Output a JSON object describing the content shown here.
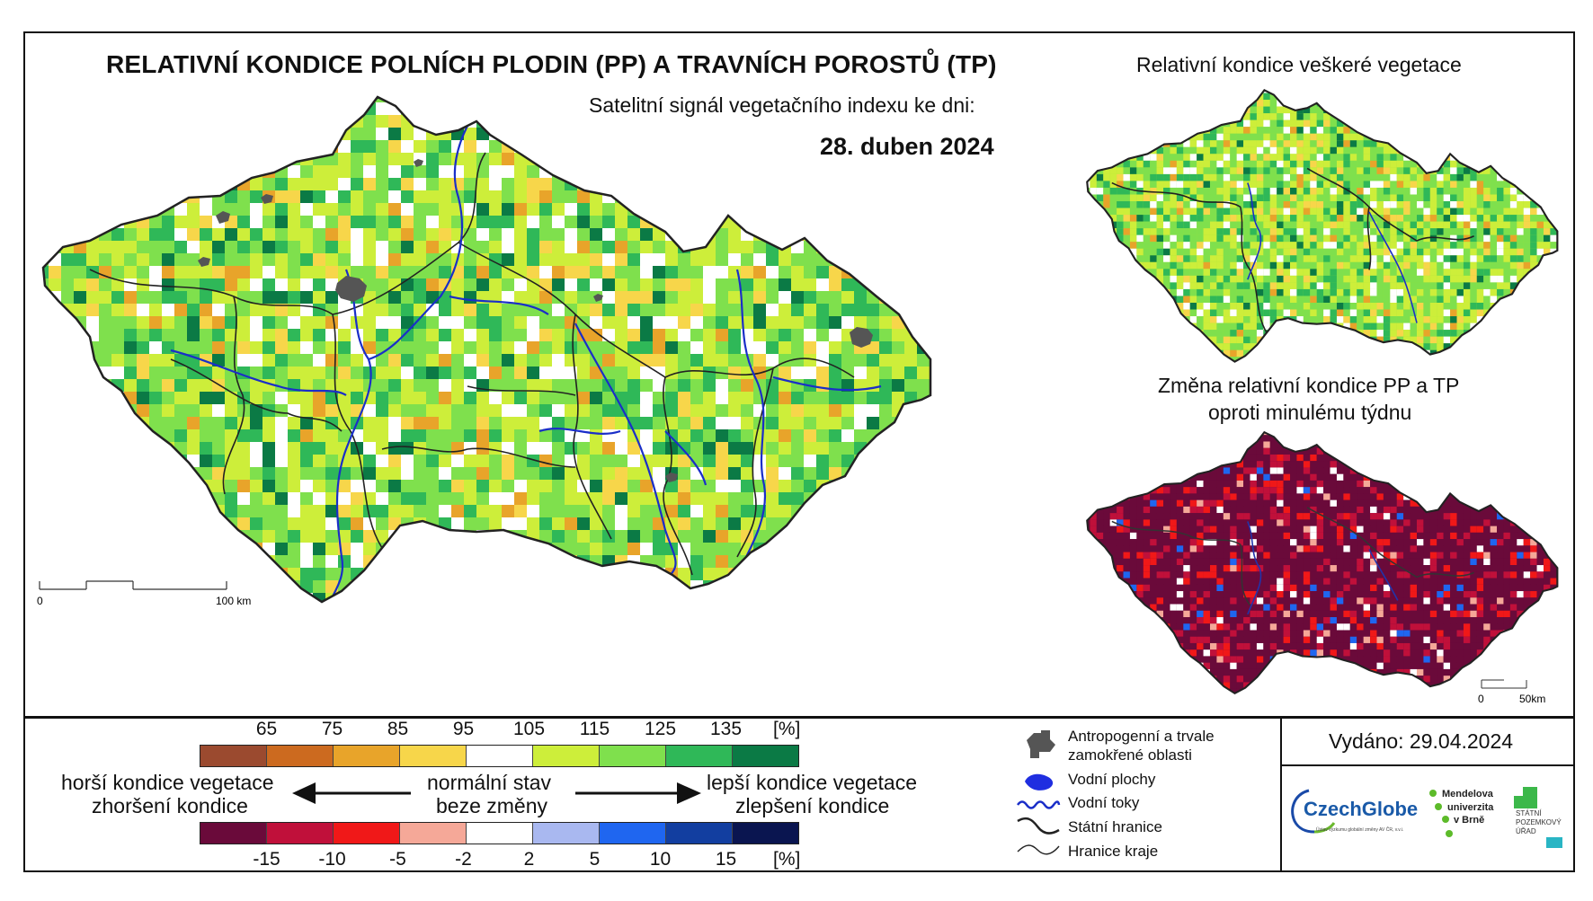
{
  "header": {
    "title": "RELATIVNÍ KONDICE POLNÍCH PLODIN (PP) A TRAVNÍCH POROSTŮ (TP)",
    "subtitle": "Satelitní signál vegetačního indexu ke dni:",
    "date": "28. duben 2024"
  },
  "inset_maps": {
    "vegetation_title": "Relativní kondice veškeré vegetace",
    "change_title_line1": "Změna relativní kondice PP a TP",
    "change_title_line2": "oproti minulému týdnu"
  },
  "scale_bars": {
    "main": {
      "start": "0",
      "end": "100 km"
    },
    "inset": {
      "start": "0",
      "end": "50km"
    }
  },
  "legend": {
    "condition_ticks": [
      "65",
      "75",
      "85",
      "95",
      "105",
      "115",
      "125",
      "135"
    ],
    "condition_unit": "[%]",
    "condition_colors": [
      "#9b4a2f",
      "#cc6a1f",
      "#e8a42a",
      "#f7d64a",
      "#ffffff",
      "#cdee3a",
      "#7fe04d",
      "#2fb858",
      "#0b7a45"
    ],
    "change_ticks": [
      "-15",
      "-10",
      "-5",
      "-2",
      "2",
      "5",
      "10",
      "15"
    ],
    "change_unit": "[%]",
    "change_colors": [
      "#6a0a3a",
      "#c0103a",
      "#f01818",
      "#f5a898",
      "#ffffff",
      "#a9b8f0",
      "#1f66f0",
      "#123ea0",
      "#0a1550"
    ],
    "worse_line1": "horší kondice vegetace",
    "worse_line2": "zhoršení kondice",
    "normal_line1": "normální stav",
    "normal_line2": "beze změny",
    "better_line1": "lepší kondice vegetace",
    "better_line2": "zlepšení kondice"
  },
  "map_legend": {
    "items": [
      {
        "label_line1": "Antropogenní a trvale",
        "label_line2": "zamokřené oblasti",
        "icon": "urban-area-icon"
      },
      {
        "label_line1": "Vodní plochy",
        "icon": "water-body-icon"
      },
      {
        "label_line1": "Vodní toky",
        "icon": "river-icon"
      },
      {
        "label_line1": "Státní hranice",
        "icon": "state-border-icon"
      },
      {
        "label_line1": "Hranice kraje",
        "icon": "region-border-icon"
      }
    ]
  },
  "issued": "Vydáno: 29.04.2024",
  "logos": {
    "czechglobe": "CzechGlobe",
    "czechglobe_sub": "Ústav výzkumu globální změny AV ČR, v.v.i.",
    "mendel_line1": "Mendelova",
    "mendel_line2": "univerzita",
    "mendel_line3": "v Brně",
    "spu_line1": "STÁTNÍ",
    "spu_line2": "POZEMKOVÝ",
    "spu_line3": "ÚŘAD"
  }
}
